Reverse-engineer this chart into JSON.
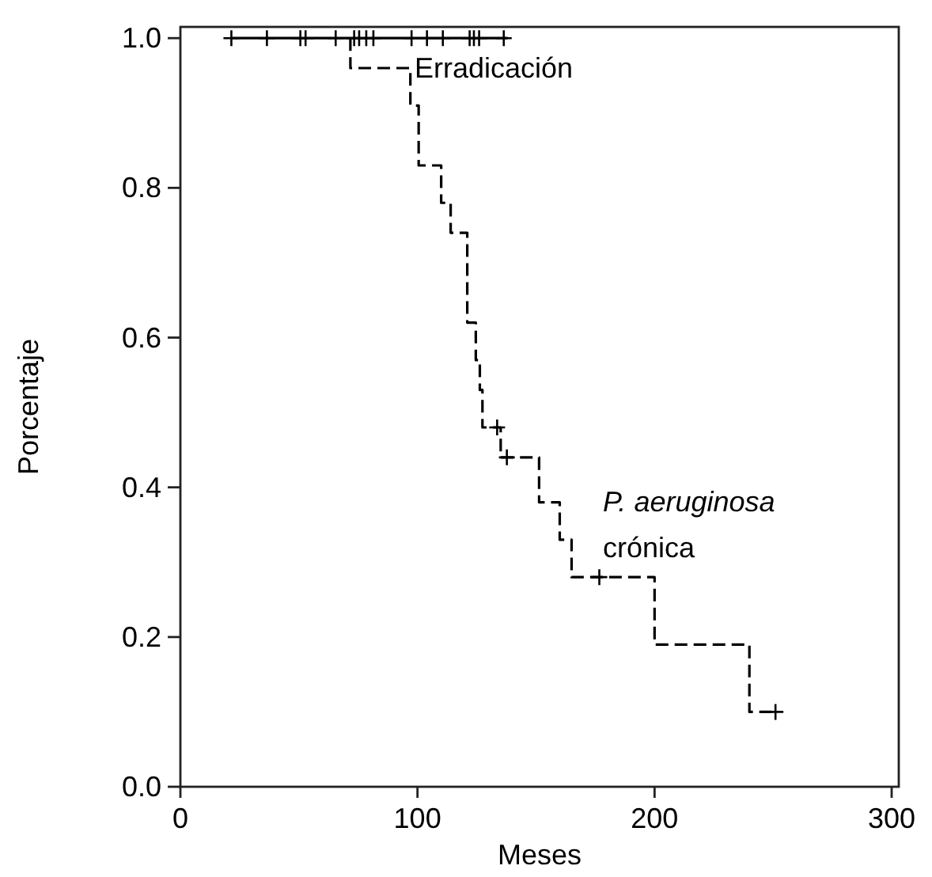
{
  "chart_data": {
    "type": "step",
    "xlabel": "Meses",
    "ylabel": "Porcentaje",
    "xlim": [
      0,
      303
    ],
    "ylim": [
      0,
      1.015
    ],
    "xticks": [
      0,
      100,
      200,
      300
    ],
    "yticks": [
      {
        "value": 0,
        "label": "0.0"
      },
      {
        "value": 0.2,
        "label": "0.2"
      },
      {
        "value": 0.4,
        "label": "0.4"
      },
      {
        "value": 0.6,
        "label": "0.6"
      },
      {
        "value": 0.8,
        "label": "0.8"
      },
      {
        "value": 1,
        "label": "1.0"
      }
    ],
    "grid": false,
    "series": [
      {
        "color": "#000000",
        "line_style": "solid",
        "marker": "none",
        "x": [
          21.5,
          138
        ],
        "values": [
          1,
          1
        ]
      },
      {
        "type": "scatter",
        "color": "#000000",
        "marker": "cross",
        "x": [
          21.5,
          36.5,
          50.6,
          52.8,
          65.5,
          73.3,
          75.4,
          78.4,
          81.4,
          97.5,
          104,
          110.7,
          122,
          123.8,
          126,
          136.4
        ],
        "values": [
          1,
          1,
          1,
          1,
          1,
          1,
          1,
          1,
          1,
          1,
          1,
          1,
          1,
          1,
          1,
          1
        ]
      },
      {
        "color": "#000000",
        "line_style": "dashed",
        "marker": "none",
        "x": [
          71.7,
          71.7,
          97,
          100.5,
          110,
          114,
          121,
          124.6,
          126.3,
          127.4,
          135.1,
          151.3,
          160,
          165,
          200,
          240,
          251
        ],
        "values": [
          1,
          0.96,
          0.91,
          0.83,
          0.78,
          0.74,
          0.62,
          0.57,
          0.53,
          0.48,
          0.44,
          0.38,
          0.33,
          0.28,
          0.19,
          0.1,
          0.1
        ]
      },
      {
        "type": "scatter",
        "color": "#000000",
        "marker": "cross",
        "x": [
          133.6,
          137.7,
          176.7,
          251
        ],
        "values": [
          0.48,
          0.44,
          0.28,
          0.1
        ]
      }
    ],
    "annotations": [
      "Erradicación",
      "P. aeruginosa",
      "crónica"
    ]
  }
}
